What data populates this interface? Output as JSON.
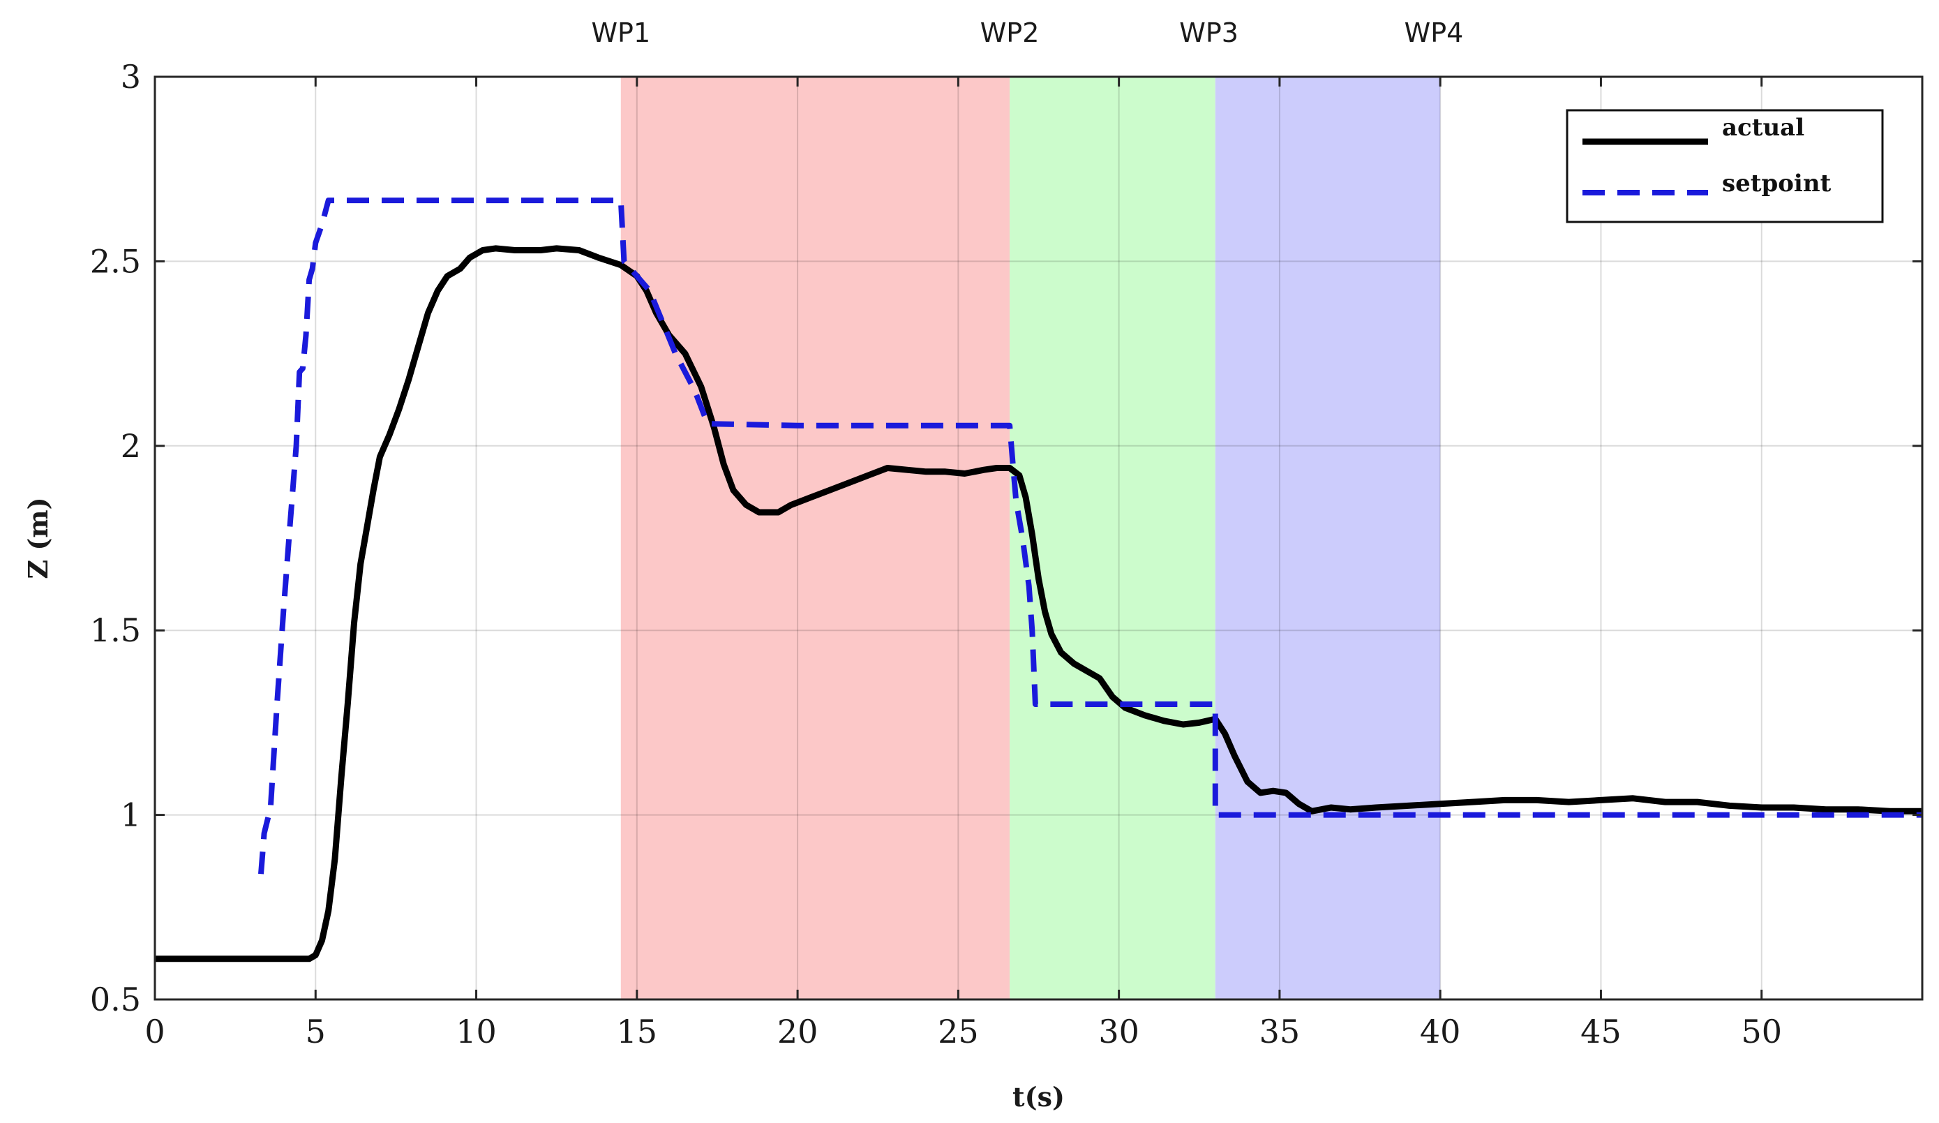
{
  "chart_data": {
    "type": "line",
    "xlabel": "t(s)",
    "ylabel": "Z (m)",
    "xlim": [
      0,
      55
    ],
    "ylim": [
      0.5,
      3
    ],
    "xticks": [
      0,
      5,
      10,
      15,
      20,
      25,
      30,
      35,
      40,
      45,
      50
    ],
    "yticks": [
      0.5,
      1,
      1.5,
      2,
      2.5,
      3
    ],
    "xtick_labels": [
      "0",
      "5",
      "10",
      "15",
      "20",
      "25",
      "30",
      "35",
      "40",
      "45",
      "50"
    ],
    "ytick_labels": [
      "0.5",
      "1",
      "1.5",
      "2",
      "2.5",
      "3"
    ],
    "grid": true,
    "legend_position": "top-right",
    "regions": [
      {
        "label": "WP1",
        "x_start": 14.5,
        "x_end": 26.6,
        "color": "#fcc8c8"
      },
      {
        "label": "WP2",
        "x_start": 26.6,
        "x_end": 33.0,
        "color": "#ccfccc"
      },
      {
        "label": "WP3",
        "x_start": 33.0,
        "x_end": 40.0,
        "color": "#ccccfc"
      },
      {
        "label": "WP4",
        "x_start": 40.0,
        "x_end": 40.0,
        "color": "#ffffff"
      }
    ],
    "region_label_x": [
      14.5,
      26.6,
      32.8,
      39.8
    ],
    "series": [
      {
        "name": "actual",
        "color": "#000000",
        "style": "solid",
        "points": [
          [
            0,
            0.61
          ],
          [
            2,
            0.61
          ],
          [
            4,
            0.61
          ],
          [
            4.8,
            0.61
          ],
          [
            5.0,
            0.62
          ],
          [
            5.2,
            0.66
          ],
          [
            5.4,
            0.74
          ],
          [
            5.6,
            0.88
          ],
          [
            5.8,
            1.1
          ],
          [
            6.0,
            1.3
          ],
          [
            6.2,
            1.52
          ],
          [
            6.4,
            1.68
          ],
          [
            6.6,
            1.78
          ],
          [
            6.8,
            1.88
          ],
          [
            7.0,
            1.97
          ],
          [
            7.3,
            2.03
          ],
          [
            7.6,
            2.1
          ],
          [
            7.9,
            2.18
          ],
          [
            8.2,
            2.27
          ],
          [
            8.5,
            2.36
          ],
          [
            8.8,
            2.42
          ],
          [
            9.1,
            2.46
          ],
          [
            9.5,
            2.48
          ],
          [
            9.8,
            2.51
          ],
          [
            10.2,
            2.53
          ],
          [
            10.6,
            2.535
          ],
          [
            11.2,
            2.53
          ],
          [
            12.0,
            2.53
          ],
          [
            12.5,
            2.535
          ],
          [
            13.2,
            2.53
          ],
          [
            13.8,
            2.51
          ],
          [
            14.5,
            2.49
          ],
          [
            15.0,
            2.46
          ],
          [
            15.3,
            2.42
          ],
          [
            15.6,
            2.36
          ],
          [
            16.0,
            2.3
          ],
          [
            16.5,
            2.25
          ],
          [
            17.0,
            2.16
          ],
          [
            17.4,
            2.05
          ],
          [
            17.7,
            1.95
          ],
          [
            18.0,
            1.88
          ],
          [
            18.4,
            1.84
          ],
          [
            18.8,
            1.82
          ],
          [
            19.4,
            1.82
          ],
          [
            19.8,
            1.84
          ],
          [
            20.4,
            1.86
          ],
          [
            21.0,
            1.88
          ],
          [
            21.6,
            1.9
          ],
          [
            22.2,
            1.92
          ],
          [
            22.8,
            1.94
          ],
          [
            23.4,
            1.935
          ],
          [
            24.0,
            1.93
          ],
          [
            24.6,
            1.93
          ],
          [
            25.2,
            1.925
          ],
          [
            25.8,
            1.935
          ],
          [
            26.2,
            1.94
          ],
          [
            26.6,
            1.94
          ],
          [
            26.9,
            1.92
          ],
          [
            27.1,
            1.86
          ],
          [
            27.3,
            1.76
          ],
          [
            27.5,
            1.64
          ],
          [
            27.7,
            1.55
          ],
          [
            27.9,
            1.49
          ],
          [
            28.2,
            1.44
          ],
          [
            28.6,
            1.41
          ],
          [
            29.0,
            1.39
          ],
          [
            29.4,
            1.37
          ],
          [
            29.8,
            1.32
          ],
          [
            30.2,
            1.29
          ],
          [
            30.8,
            1.27
          ],
          [
            31.4,
            1.255
          ],
          [
            32.0,
            1.245
          ],
          [
            32.5,
            1.25
          ],
          [
            33.0,
            1.26
          ],
          [
            33.3,
            1.22
          ],
          [
            33.6,
            1.16
          ],
          [
            34.0,
            1.09
          ],
          [
            34.4,
            1.06
          ],
          [
            34.8,
            1.065
          ],
          [
            35.2,
            1.06
          ],
          [
            35.6,
            1.03
          ],
          [
            36.0,
            1.01
          ],
          [
            36.6,
            1.02
          ],
          [
            37.2,
            1.015
          ],
          [
            38.0,
            1.02
          ],
          [
            39.0,
            1.025
          ],
          [
            40.0,
            1.03
          ],
          [
            41.0,
            1.035
          ],
          [
            42.0,
            1.04
          ],
          [
            43.0,
            1.04
          ],
          [
            44.0,
            1.035
          ],
          [
            45.0,
            1.04
          ],
          [
            46.0,
            1.045
          ],
          [
            47.0,
            1.035
          ],
          [
            48.0,
            1.035
          ],
          [
            49.0,
            1.025
          ],
          [
            50.0,
            1.02
          ],
          [
            51.0,
            1.02
          ],
          [
            52.0,
            1.015
          ],
          [
            53.0,
            1.015
          ],
          [
            54.0,
            1.01
          ],
          [
            55.0,
            1.01
          ]
        ]
      },
      {
        "name": "setpoint",
        "color": "#1a1adb",
        "style": "dashed",
        "points": [
          [
            3.3,
            0.84
          ],
          [
            3.4,
            0.95
          ],
          [
            3.6,
            1.02
          ],
          [
            3.8,
            1.3
          ],
          [
            4.0,
            1.55
          ],
          [
            4.2,
            1.78
          ],
          [
            4.4,
            2.0
          ],
          [
            4.5,
            2.2
          ],
          [
            4.6,
            2.21
          ],
          [
            4.7,
            2.3
          ],
          [
            4.8,
            2.45
          ],
          [
            4.9,
            2.48
          ],
          [
            5.0,
            2.55
          ],
          [
            5.2,
            2.6
          ],
          [
            5.4,
            2.665
          ],
          [
            10.0,
            2.665
          ],
          [
            14.5,
            2.665
          ],
          [
            14.6,
            2.5
          ],
          [
            15.4,
            2.42
          ],
          [
            16.2,
            2.25
          ],
          [
            16.8,
            2.15
          ],
          [
            17.2,
            2.06
          ],
          [
            20.0,
            2.055
          ],
          [
            26.6,
            2.055
          ],
          [
            26.7,
            1.95
          ],
          [
            26.8,
            1.85
          ],
          [
            27.0,
            1.75
          ],
          [
            27.2,
            1.62
          ],
          [
            27.3,
            1.5
          ],
          [
            27.4,
            1.3
          ],
          [
            30.0,
            1.3
          ],
          [
            33.0,
            1.3
          ],
          [
            33.0,
            1.0
          ],
          [
            40.0,
            1.0
          ],
          [
            55.0,
            1.0
          ]
        ]
      }
    ]
  }
}
